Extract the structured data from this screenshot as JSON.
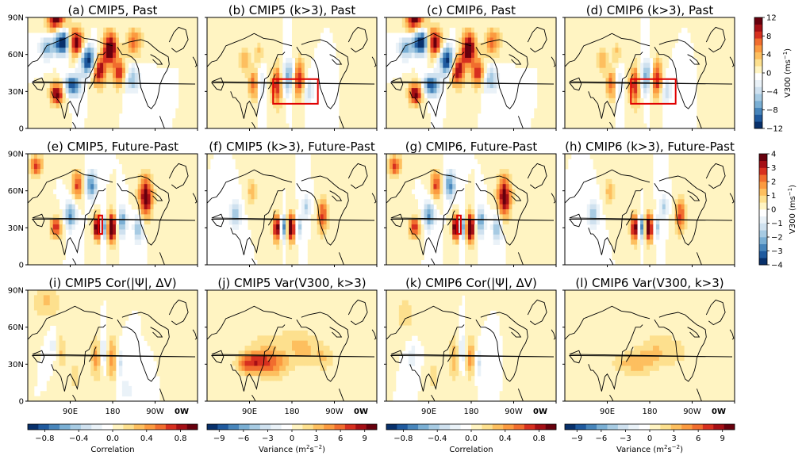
{
  "chart_data": {
    "type": "heatmap",
    "description_free": true,
    "lat_ticks": [
      "0",
      "30N",
      "60N",
      "90N"
    ],
    "lon_ticks": [
      "90E",
      "180",
      "90W",
      "0W"
    ],
    "panels": [
      {
        "id": "a",
        "title": "(a) CMIP5, Past",
        "scale": "v12",
        "field": [
          [
            2,
            60,
            90,
            1.8,
            14,
            8
          ],
          [
            -1,
            75,
            70,
            2.2,
            13,
            7
          ],
          [
            1,
            100,
            70,
            2.0,
            12,
            8
          ],
          [
            -1,
            130,
            55,
            2.0,
            12,
            8
          ],
          [
            -1,
            95,
            35,
            1.6,
            12,
            6
          ],
          [
            2,
            62,
            28,
            1.8,
            10,
            6
          ],
          [
            1,
            150,
            48,
            1.8,
            11,
            9
          ],
          [
            1,
            175,
            65,
            2.0,
            10,
            9
          ],
          [
            1,
            195,
            45,
            1.4,
            10,
            8
          ],
          [
            -1,
            220,
            40,
            0.9,
            12,
            8
          ],
          [
            0.6,
            225,
            70,
            1.0,
            12,
            8
          ],
          [
            -0.5,
            40,
            65,
            1.0,
            10,
            6
          ]
        ],
        "box": null
      },
      {
        "id": "b",
        "title": "(b) CMIP5 (k>3), Past",
        "scale": "v12",
        "field": [
          [
            1,
            100,
            35,
            1.2,
            8,
            9
          ],
          [
            -1,
            112,
            35,
            0.7,
            8,
            9
          ],
          [
            1,
            148,
            35,
            1.4,
            8,
            11
          ],
          [
            -1,
            172,
            42,
            1.0,
            9,
            10
          ],
          [
            1,
            195,
            40,
            1.4,
            8,
            11
          ],
          [
            -1,
            215,
            30,
            0.6,
            8,
            8
          ],
          [
            0.6,
            80,
            55,
            0.6,
            8,
            8
          ],
          [
            0.5,
            110,
            62,
            0.5,
            7,
            6
          ]
        ],
        "box": {
          "x0": 140,
          "x1": 235,
          "y0": 20,
          "y1": 40
        }
      },
      {
        "id": "c",
        "title": "(c) CMIP6, Past",
        "scale": "v12",
        "field": [
          [
            2,
            60,
            90,
            1.8,
            14,
            8
          ],
          [
            -1,
            75,
            70,
            2.2,
            13,
            7
          ],
          [
            1,
            100,
            70,
            2.0,
            12,
            8
          ],
          [
            -1,
            130,
            55,
            2.0,
            12,
            8
          ],
          [
            -1,
            95,
            35,
            1.6,
            12,
            6
          ],
          [
            2,
            62,
            28,
            1.8,
            10,
            6
          ],
          [
            1,
            150,
            48,
            1.8,
            11,
            9
          ],
          [
            1,
            175,
            65,
            2.0,
            10,
            9
          ],
          [
            1,
            195,
            45,
            1.4,
            10,
            8
          ],
          [
            -1,
            220,
            40,
            0.9,
            12,
            8
          ],
          [
            0.6,
            225,
            70,
            1.0,
            12,
            8
          ],
          [
            -0.5,
            40,
            65,
            1.0,
            10,
            6
          ]
        ],
        "box": null
      },
      {
        "id": "d",
        "title": "(d) CMIP6 (k>3), Past",
        "scale": "v12",
        "field": [
          [
            1,
            100,
            35,
            1.2,
            8,
            9
          ],
          [
            -1,
            112,
            35,
            0.7,
            8,
            9
          ],
          [
            1,
            148,
            35,
            1.4,
            8,
            11
          ],
          [
            -1,
            172,
            42,
            1.0,
            9,
            10
          ],
          [
            1,
            195,
            40,
            1.4,
            8,
            11
          ],
          [
            -1,
            215,
            30,
            0.6,
            8,
            8
          ],
          [
            0.6,
            80,
            55,
            0.6,
            8,
            8
          ],
          [
            0.5,
            110,
            62,
            0.5,
            7,
            6
          ]
        ],
        "box": {
          "x0": 140,
          "x1": 235,
          "y0": 20,
          "y1": 40
        }
      },
      {
        "id": "e",
        "title": "(e) CMIP5, Future-Past",
        "scale": "v4",
        "field": [
          [
            1,
            60,
            30,
            1.4,
            8,
            6
          ],
          [
            -1,
            90,
            40,
            1.2,
            8,
            8
          ],
          [
            1,
            148,
            30,
            2.2,
            6,
            7
          ],
          [
            -1,
            160,
            30,
            1.4,
            5,
            7
          ],
          [
            1,
            178,
            30,
            2.4,
            6,
            8
          ],
          [
            -1,
            200,
            35,
            1.2,
            6,
            8
          ],
          [
            1,
            250,
            55,
            1.8,
            10,
            12
          ],
          [
            -1,
            135,
            65,
            1.2,
            8,
            8
          ],
          [
            1,
            105,
            65,
            1.2,
            8,
            8
          ],
          [
            1,
            18,
            80,
            1.2,
            10,
            6
          ],
          [
            -0.8,
            235,
            30,
            1.0,
            7,
            8
          ]
        ],
        "box": {
          "x0": 150,
          "x1": 158,
          "y0": 25,
          "y1": 40
        }
      },
      {
        "id": "f",
        "title": "(f) CMIP5 (k>3), Future-Past",
        "scale": "v4",
        "field": [
          [
            1,
            148,
            30,
            1.8,
            6,
            8
          ],
          [
            -1,
            162,
            30,
            1.4,
            5,
            7
          ],
          [
            1,
            178,
            30,
            2.0,
            6,
            8
          ],
          [
            -1,
            195,
            30,
            0.8,
            5,
            7
          ],
          [
            1,
            245,
            40,
            1.2,
            8,
            10
          ],
          [
            -0.8,
            60,
            40,
            0.8,
            8,
            8
          ],
          [
            0.6,
            95,
            60,
            0.6,
            8,
            8
          ],
          [
            -0.7,
            210,
            48,
            0.7,
            6,
            7
          ]
        ],
        "box": null
      },
      {
        "id": "g",
        "title": "(g) CMIP6, Future-Past",
        "scale": "v4",
        "field": [
          [
            1,
            60,
            30,
            1.4,
            8,
            6
          ],
          [
            -1,
            90,
            40,
            1.2,
            8,
            8
          ],
          [
            1,
            148,
            30,
            2.2,
            6,
            7
          ],
          [
            -1,
            160,
            30,
            1.4,
            5,
            7
          ],
          [
            1,
            178,
            30,
            2.4,
            6,
            8
          ],
          [
            -1,
            200,
            35,
            1.2,
            6,
            8
          ],
          [
            1,
            250,
            55,
            1.8,
            10,
            12
          ],
          [
            -1,
            135,
            65,
            1.2,
            8,
            8
          ],
          [
            1,
            105,
            65,
            1.2,
            8,
            8
          ],
          [
            1,
            18,
            80,
            1.2,
            10,
            6
          ],
          [
            -0.8,
            235,
            30,
            1.0,
            7,
            8
          ]
        ],
        "box": {
          "x0": 150,
          "x1": 158,
          "y0": 25,
          "y1": 40
        }
      },
      {
        "id": "h",
        "title": "(h) CMIP6 (k>3), Future-Past",
        "scale": "v4",
        "field": [
          [
            1,
            148,
            30,
            1.8,
            6,
            8
          ],
          [
            -1,
            162,
            30,
            1.4,
            5,
            7
          ],
          [
            1,
            178,
            30,
            2.0,
            6,
            8
          ],
          [
            -1,
            195,
            30,
            0.8,
            5,
            7
          ],
          [
            1,
            245,
            40,
            1.2,
            8,
            10
          ],
          [
            -0.8,
            60,
            40,
            0.8,
            8,
            8
          ],
          [
            0.6,
            95,
            60,
            0.6,
            8,
            8
          ],
          [
            -0.7,
            210,
            48,
            0.7,
            6,
            7
          ]
        ],
        "box": null
      },
      {
        "id": "i",
        "title": "(i) CMIP5 Cor(|Ψ|, ΔV)",
        "scale": "cor",
        "field": [
          [
            0.5,
            40,
            80,
            0.5,
            20,
            10
          ],
          [
            0.8,
            145,
            35,
            0.8,
            8,
            12
          ],
          [
            -0.6,
            160,
            40,
            0.6,
            7,
            10
          ],
          [
            0.9,
            178,
            35,
            0.9,
            7,
            12
          ],
          [
            -0.6,
            195,
            30,
            0.5,
            6,
            8
          ],
          [
            0.5,
            70,
            40,
            0.5,
            8,
            10
          ],
          [
            -0.4,
            55,
            45,
            0.4,
            7,
            8
          ],
          [
            0.4,
            100,
            20,
            0.4,
            8,
            8
          ],
          [
            -0.4,
            210,
            10,
            0.4,
            8,
            6
          ]
        ],
        "box": null
      },
      {
        "id": "j",
        "title": "(j) CMIP5 Var(V300, k>3)",
        "scale": "var",
        "field": [
          [
            10,
            115,
            32,
            1.0,
            22,
            7
          ],
          [
            8,
            85,
            30,
            0.8,
            18,
            6
          ],
          [
            6,
            150,
            30,
            0.6,
            20,
            8
          ],
          [
            5,
            205,
            42,
            0.5,
            25,
            10
          ],
          [
            4,
            250,
            35,
            0.4,
            15,
            8
          ],
          [
            3,
            140,
            50,
            0.3,
            40,
            6
          ]
        ],
        "box": null
      },
      {
        "id": "k",
        "title": "(k) CMIP6 Cor(|Ψ|, ΔV)",
        "scale": "cor",
        "field": [
          [
            0.4,
            40,
            70,
            0.4,
            15,
            10
          ],
          [
            0.7,
            145,
            35,
            0.7,
            8,
            12
          ],
          [
            -0.6,
            160,
            40,
            0.6,
            7,
            10
          ],
          [
            0.8,
            178,
            35,
            0.8,
            7,
            12
          ],
          [
            -0.5,
            195,
            30,
            0.5,
            6,
            8
          ],
          [
            -0.4,
            55,
            35,
            0.4,
            7,
            8
          ],
          [
            0.4,
            100,
            20,
            0.4,
            8,
            8
          ]
        ],
        "box": null
      },
      {
        "id": "l",
        "title": "(l) CMIP6 Var(V300, k>3)",
        "scale": "var",
        "field": [
          [
            5,
            160,
            32,
            0.5,
            25,
            8
          ],
          [
            4,
            200,
            42,
            0.4,
            25,
            10
          ],
          [
            3,
            120,
            30,
            0.3,
            20,
            6
          ],
          [
            3,
            240,
            40,
            0.3,
            15,
            8
          ]
        ],
        "box": null
      }
    ],
    "colorbars": {
      "v12": {
        "label": "V300 (ms",
        "label_sup": "−1",
        "label_close": ")",
        "ticks": [
          "12",
          "8",
          "4",
          "0",
          "−4",
          "−8",
          "−12"
        ],
        "range": [
          -12,
          12
        ],
        "levels": [
          -12,
          -10,
          -8,
          -6,
          -4,
          -2,
          -1,
          1,
          2,
          4,
          6,
          8,
          10,
          12
        ]
      },
      "v4": {
        "label": "V300 (ms",
        "label_sup": "−1",
        "label_close": ")",
        "ticks": [
          "4",
          "3",
          "2",
          "1",
          "0",
          "−1",
          "−2",
          "−3",
          "−4"
        ],
        "range": [
          -4,
          4
        ]
      },
      "cor": {
        "label": "Correlation",
        "ticks": [
          "−0.8",
          "−0.4",
          "0.0",
          "0.4",
          "0.8"
        ],
        "range": [
          -1,
          1
        ]
      },
      "var": {
        "label": "Variance (m",
        "label_sup": "2",
        "label_mid": "s",
        "label_sup2": "−2",
        "label_close": ")",
        "ticks": [
          "−9",
          "−6",
          "−3",
          "0",
          "3",
          "6",
          "9"
        ],
        "range": [
          -10.5,
          10.5
        ]
      }
    },
    "palette": [
      "#08306b",
      "#1f5a9e",
      "#4785bb",
      "#7aafd4",
      "#a7cbe3",
      "#cfe1ef",
      "#eaf2f8",
      "#ffffff",
      "#fff4c2",
      "#fde08e",
      "#fdbf5f",
      "#fb9a40",
      "#f16d2e",
      "#d7301f",
      "#a50f15",
      "#67000d"
    ]
  }
}
